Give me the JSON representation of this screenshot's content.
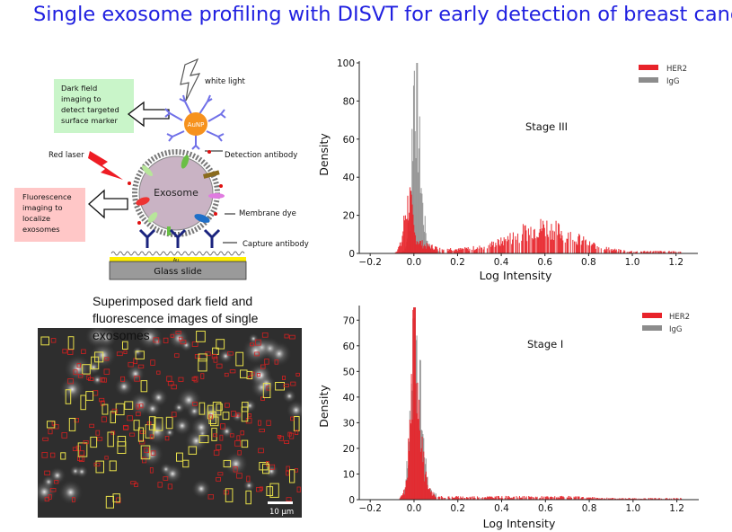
{
  "title": "Single exosome profiling with DISVT for early detection of breast cancer",
  "diagram": {
    "white_light": "white light",
    "dark_field": [
      "Dark field",
      "imaging to",
      "detect targeted",
      "surface marker"
    ],
    "red_laser": "Red laser",
    "fluorescence": [
      "Fluorescence",
      "imaging to",
      "localize",
      "exosomes"
    ],
    "aunp": "AuNP",
    "exosome": "Exosome",
    "detection_antibody": "Detection antibody",
    "membrane_dye": "Membrane dye",
    "capture_antibody": "Capture antibody",
    "au": "Au",
    "glass_slide": "Glass slide"
  },
  "caption": "Superimposed dark field and fluorescence images of single exosomes",
  "scale_bar": "10 μm",
  "colors": {
    "her2": "#e8232a",
    "igg": "#8c8c8c",
    "title": "#1f1fe0"
  },
  "chart_data": [
    {
      "type": "histogram",
      "stage_label": "Stage III",
      "xlabel": "Log Intensity",
      "ylabel": "Density",
      "xlim": [
        -0.25,
        1.3
      ],
      "ylim": [
        0,
        100
      ],
      "xticks": [
        "−0.2",
        "0.0",
        "0.2",
        "0.4",
        "0.6",
        "0.8",
        "1.0",
        "1.2"
      ],
      "yticks": [
        "0",
        "20",
        "40",
        "60",
        "80",
        "100"
      ],
      "legend": [
        "HER2",
        "IgG"
      ],
      "series": [
        {
          "name": "IgG",
          "x": [
            -0.04,
            -0.02,
            0.0,
            0.02,
            0.04,
            0.06,
            0.08,
            0.1
          ],
          "y": [
            2,
            20,
            97,
            60,
            20,
            6,
            2,
            1
          ]
        },
        {
          "name": "HER2",
          "x": [
            -0.06,
            -0.04,
            -0.02,
            0.0,
            0.02,
            0.05,
            0.1,
            0.2,
            0.3,
            0.4,
            0.5,
            0.6,
            0.7,
            0.8,
            0.9,
            1.0,
            1.1,
            1.2
          ],
          "y": [
            5,
            22,
            28,
            10,
            6,
            4,
            3,
            2,
            3,
            6,
            11,
            14,
            10,
            5,
            2,
            1,
            1,
            1
          ]
        }
      ]
    },
    {
      "type": "histogram",
      "stage_label": "Stage I",
      "xlabel": "Log Intensity",
      "ylabel": "Density",
      "xlim": [
        -0.25,
        1.3
      ],
      "ylim": [
        0,
        75
      ],
      "xticks": [
        "−0.2",
        "0.0",
        "0.2",
        "0.4",
        "0.6",
        "0.8",
        "1.0",
        "1.2"
      ],
      "yticks": [
        "0",
        "10",
        "20",
        "30",
        "40",
        "50",
        "60",
        "70"
      ],
      "legend": [
        "HER2",
        "IgG"
      ],
      "series": [
        {
          "name": "IgG",
          "x": [
            -0.04,
            -0.02,
            0.0,
            0.02,
            0.04,
            0.06,
            0.08
          ],
          "y": [
            4,
            30,
            75,
            50,
            20,
            6,
            2
          ]
        },
        {
          "name": "HER2",
          "x": [
            -0.04,
            -0.02,
            0.0,
            0.02,
            0.04,
            0.06,
            0.1,
            0.3,
            0.5,
            0.7,
            0.9,
            1.1,
            1.2
          ],
          "y": [
            4,
            28,
            70,
            45,
            15,
            4,
            1,
            1,
            1,
            1,
            0.5,
            0.5,
            0.5
          ]
        }
      ]
    }
  ]
}
